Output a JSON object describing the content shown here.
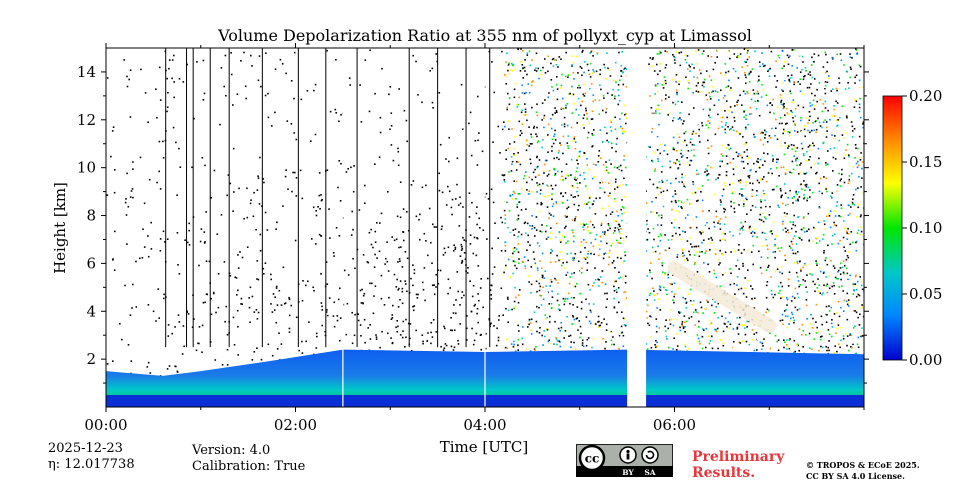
{
  "chart_data": {
    "type": "heatmap",
    "title": "Volume Depolarization Ratio at 355 nm of pollyxt_cyp at Limassol",
    "xlabel": "Time [UTC]",
    "ylabel": "Height [km]",
    "x_range_hours": [
      0,
      8
    ],
    "x_ticks": [
      {
        "value": 0,
        "label": "00:00"
      },
      {
        "value": 2,
        "label": "02:00"
      },
      {
        "value": 4,
        "label": "04:00"
      },
      {
        "value": 6,
        "label": "06:00"
      }
    ],
    "ylim": [
      0,
      15
    ],
    "y_ticks": [
      {
        "value": 2,
        "label": "2"
      },
      {
        "value": 4,
        "label": "4"
      },
      {
        "value": 6,
        "label": "6"
      },
      {
        "value": 8,
        "label": "8"
      },
      {
        "value": 10,
        "label": "10"
      },
      {
        "value": 12,
        "label": "12"
      },
      {
        "value": 14,
        "label": "14"
      }
    ],
    "colorbar": {
      "range": [
        0,
        0.2
      ],
      "ticks": [
        {
          "value": 0.0,
          "label": "0.00"
        },
        {
          "value": 0.05,
          "label": "0.05"
        },
        {
          "value": 0.1,
          "label": "0.10"
        },
        {
          "value": 0.15,
          "label": "0.15"
        },
        {
          "value": 0.2,
          "label": "0.20"
        }
      ],
      "colormap": [
        "#0000cd",
        "#0087ff",
        "#00c8c8",
        "#00e600",
        "#ffff00",
        "#ff8c00",
        "#ff0000"
      ]
    },
    "features": {
      "boundary_layer_top_km": [
        {
          "t": 0.0,
          "h": 1.5
        },
        {
          "t": 0.6,
          "h": 1.3
        },
        {
          "t": 1.0,
          "h": 1.5
        },
        {
          "t": 1.7,
          "h": 1.9
        },
        {
          "t": 2.5,
          "h": 2.4
        },
        {
          "t": 4.0,
          "h": 2.3
        },
        {
          "t": 5.5,
          "h": 2.4
        },
        {
          "t": 8.0,
          "h": 2.2
        }
      ],
      "aerosol_layer_km": [
        {
          "t": 6.0,
          "h": 5.8
        },
        {
          "t": 6.5,
          "h": 4.6
        },
        {
          "t": 7.0,
          "h": 3.4
        }
      ],
      "no_data_gap_hours": [
        5.5,
        5.7
      ],
      "noise_onset_hours": 4.2
    }
  },
  "colors": {
    "colorbar_low": "#0000cd",
    "colorbar_high": "#ff0000"
  },
  "footer": {
    "date": "2025-12-23",
    "eta": "η: 12.017738",
    "version": "Version: 4.0",
    "calibration": "Calibration: True",
    "preliminary_line1": "Preliminary",
    "preliminary_line2": "Results.",
    "license_badge": {
      "cc": "cc",
      "by": "BY",
      "sa": "SA"
    },
    "copyright_line1": "© TROPOS & ECoE 2025.",
    "copyright_line2": "CC BY SA 4.0 License."
  }
}
